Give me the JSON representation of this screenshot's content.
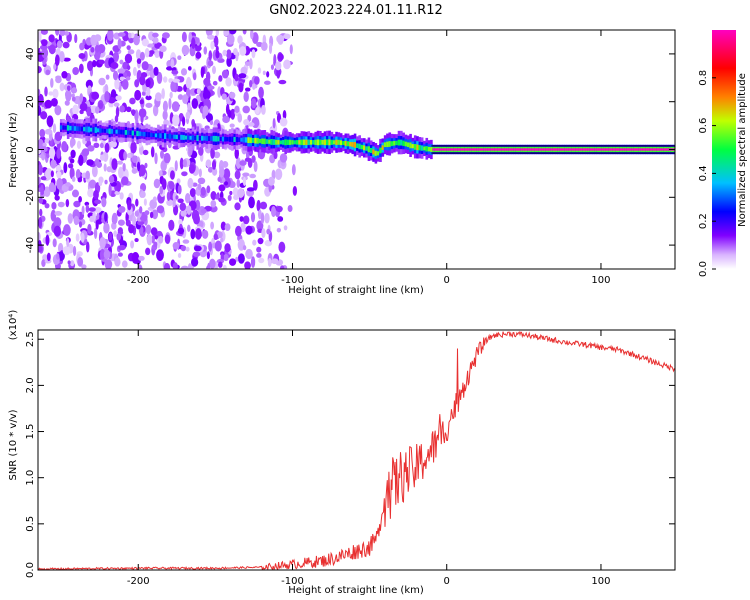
{
  "title": "GN02.2023.224.01.11.R12",
  "chart_data": [
    {
      "type": "heatmap",
      "xlabel": "Height of straight line (km)",
      "ylabel": "Frequency (Hz)",
      "xlim": [
        -265,
        148
      ],
      "ylim": [
        -50,
        50
      ],
      "x_ticks": [
        -200,
        -100,
        0,
        100
      ],
      "x_tick_labels": [
        "-200",
        "-100",
        "0",
        "100"
      ],
      "y_ticks": [
        40,
        20,
        0,
        -20,
        -40
      ],
      "y_tick_labels": [
        "40",
        "20",
        "0",
        "-20",
        "-40"
      ],
      "colorbar": {
        "label": "Normalized spectral amplitude",
        "range": [
          0,
          1
        ],
        "ticks": [
          0.0,
          0.2,
          0.4,
          0.6,
          0.8
        ],
        "tick_labels": [
          "0.0",
          "0.2",
          "0.4",
          "0.6",
          "0.8"
        ],
        "colors": [
          "#ffffff",
          "#8000ff",
          "#0000ff",
          "#00c0ff",
          "#00ff00",
          "#ffff00",
          "#ff8000",
          "#ff0000",
          "#ff00c0"
        ]
      },
      "ridge": {
        "x": [
          -245,
          -225,
          -205,
          -190,
          -170,
          -150,
          -130,
          -110,
          -90,
          -70,
          -60,
          -50,
          -45,
          -40,
          -30,
          -20,
          -10,
          0,
          20,
          60,
          100,
          148
        ],
        "frequency_hz": [
          9,
          8,
          7,
          6,
          5,
          4.5,
          4,
          3,
          3,
          3,
          2,
          0,
          -2,
          2,
          3,
          1,
          0,
          0,
          0,
          0,
          0,
          0
        ]
      },
      "grid": false
    },
    {
      "type": "line",
      "xlabel": "Height of straight line (km)",
      "ylabel": "SNR (10 * v/v)",
      "y_multiplier": "(x10⁴)",
      "xlim": [
        -265,
        148
      ],
      "ylim": [
        0,
        2.6
      ],
      "x_ticks": [
        -200,
        -100,
        0,
        100
      ],
      "x_tick_labels": [
        "-200",
        "-100",
        "0",
        "100"
      ],
      "y_ticks": [
        0.0,
        0.5,
        1.0,
        1.5,
        2.0,
        2.5
      ],
      "y_tick_labels": [
        "0.0",
        "0.5",
        "1.0",
        "1.5",
        "2.0",
        "2.5"
      ],
      "series": [
        {
          "color": "#e83030",
          "x": [
            -265,
            -200,
            -150,
            -120,
            -100,
            -80,
            -70,
            -60,
            -50,
            -45,
            -40,
            -35,
            -30,
            -25,
            -20,
            -15,
            -10,
            -5,
            0,
            5,
            10,
            15,
            20,
            25,
            30,
            40,
            50,
            60,
            70,
            80,
            90,
            100,
            110,
            120,
            130,
            140,
            148
          ],
          "values": [
            0.01,
            0.02,
            0.02,
            0.03,
            0.06,
            0.1,
            0.14,
            0.2,
            0.25,
            0.35,
            0.8,
            0.9,
            1.0,
            1.05,
            1.1,
            1.2,
            1.3,
            1.4,
            1.55,
            1.75,
            1.95,
            2.15,
            2.35,
            2.48,
            2.54,
            2.56,
            2.55,
            2.52,
            2.49,
            2.46,
            2.44,
            2.41,
            2.39,
            2.34,
            2.28,
            2.22,
            2.18
          ]
        }
      ],
      "grid": false
    }
  ]
}
